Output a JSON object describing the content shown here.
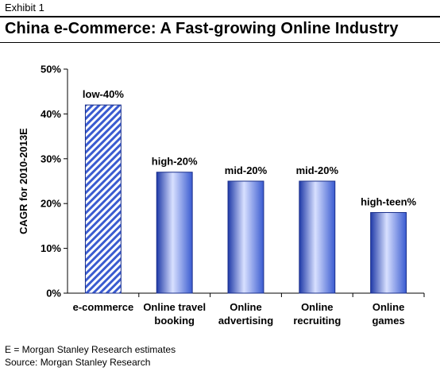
{
  "header": {
    "exhibit": "Exhibit 1",
    "title": "China e-Commerce: A Fast-growing Online Industry"
  },
  "footer": {
    "note": "E = Morgan Stanley Research estimates",
    "source": "Source: Morgan Stanley Research"
  },
  "colors": {
    "bar_fill": "#3a5bd0",
    "bar_hatch": "#3a5bd0",
    "axis": "#000000"
  },
  "chart_data": {
    "type": "bar",
    "title": "",
    "xlabel": "",
    "ylabel": "CAGR for 2010-2013E",
    "ylim": [
      0,
      50
    ],
    "yticks": [
      "0%",
      "10%",
      "20%",
      "30%",
      "40%",
      "50%"
    ],
    "grid": false,
    "categories": [
      [
        "e-commerce"
      ],
      [
        "Online travel",
        "booking"
      ],
      [
        "Online",
        "advertising"
      ],
      [
        "Online",
        "recruiting"
      ],
      [
        "Online",
        "games"
      ]
    ],
    "values": [
      42,
      27,
      25,
      25,
      18
    ],
    "data_labels": [
      "low-40%",
      "high-20%",
      "mid-20%",
      "mid-20%",
      "high-teen%"
    ],
    "patterns": [
      "hatched",
      "solid",
      "solid",
      "solid",
      "solid"
    ]
  }
}
